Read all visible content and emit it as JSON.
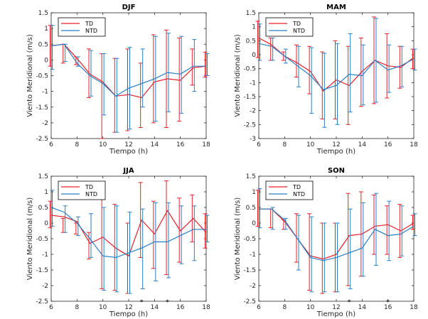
{
  "colors": {
    "td": "#e8202a",
    "ntd": "#2a7fc4",
    "axis": "#262626"
  },
  "chart_data": [
    {
      "type": "line",
      "title": "DJF",
      "xlabel": "Tiempo (h)",
      "ylabel": "Viento Meridional (m/s)",
      "xlim": [
        6,
        18
      ],
      "ylim": [
        -2.5,
        1.5
      ],
      "xticks": [
        "6",
        "8",
        "10",
        "12",
        "14",
        "16",
        "18"
      ],
      "yticks": [
        "1.5",
        "1",
        "0.5",
        "0",
        "-0.5",
        "-1",
        "-1.5",
        "-2",
        "-2.5"
      ],
      "x": [
        6,
        7,
        8,
        9,
        10,
        11,
        12,
        13,
        14,
        15,
        16,
        17,
        18
      ],
      "legend": [
        "TD",
        "NTD"
      ],
      "series": [
        {
          "name": "TD",
          "values": [
            0.45,
            0.5,
            0.05,
            -0.45,
            -0.7,
            -1.15,
            -1.1,
            -1.2,
            -0.7,
            -0.6,
            -0.65,
            -0.25,
            -0.2
          ],
          "err_low": [
            -0.2,
            -0.1,
            -0.15,
            -1.2,
            -2.5,
            -2.3,
            -2.25,
            -2.15,
            -2.0,
            -2.15,
            -1.95,
            -0.8,
            -0.55
          ],
          "err_high": [
            1.1,
            0.5,
            0.1,
            0.35,
            0.2,
            0.05,
            0.35,
            -0.1,
            0.8,
            0.95,
            0.7,
            0.35,
            0.25
          ]
        },
        {
          "name": "NTD",
          "values": [
            0.45,
            0.5,
            -0.1,
            -0.5,
            -0.75,
            -1.15,
            -0.9,
            -0.75,
            -0.6,
            -0.4,
            -0.45,
            -0.2,
            -0.2
          ],
          "err_low": [
            -0.3,
            -0.05,
            -0.2,
            -1.15,
            -1.75,
            -2.3,
            -2.2,
            -1.5,
            -1.95,
            -1.65,
            -1.7,
            -1.0,
            -0.5
          ],
          "err_high": [
            1.1,
            0.5,
            0.1,
            0.3,
            0.2,
            0.05,
            0.4,
            0.35,
            0.75,
            0.85,
            0.75,
            0.65,
            0.2
          ]
        }
      ],
      "markers": []
    },
    {
      "type": "line",
      "title": "MAM",
      "xlabel": "Tiempo (h)",
      "ylabel": "Viento Meridional (m/s)",
      "xlim": [
        6,
        18
      ],
      "ylim": [
        -3,
        1.5
      ],
      "xticks": [
        "6",
        "8",
        "10",
        "12",
        "14",
        "16",
        "18"
      ],
      "yticks": [
        "1.5",
        "1",
        "0.5",
        "0",
        "-0.5",
        "-1",
        "-1.5",
        "-2",
        "-2.5",
        "-3"
      ],
      "x": [
        6,
        7,
        8,
        9,
        10,
        11,
        12,
        13,
        14,
        15,
        16,
        17,
        18
      ],
      "legend": [
        "TD",
        "NTD"
      ],
      "series": [
        {
          "name": "TD",
          "values": [
            0.6,
            0.35,
            -0.05,
            -0.3,
            -0.6,
            -1.3,
            -0.9,
            -1.1,
            -0.6,
            -0.2,
            -0.4,
            -0.45,
            -0.1
          ],
          "err_low": [
            -0.1,
            -0.2,
            -0.2,
            -0.8,
            -1.4,
            -2.3,
            -2.3,
            -2.5,
            -1.85,
            -1.75,
            -1.55,
            -1.2,
            -0.5
          ],
          "err_high": [
            1.2,
            0.6,
            0.1,
            0.35,
            0.3,
            0.1,
            0.5,
            0.3,
            0.6,
            1.35,
            0.75,
            0.3,
            0.2
          ]
        },
        {
          "name": "NTD",
          "values": [
            0.4,
            0.3,
            -0.05,
            -0.4,
            -0.75,
            -1.25,
            -1.1,
            -0.7,
            -0.75,
            -0.2,
            -0.55,
            -0.4,
            -0.15
          ],
          "err_low": [
            -0.2,
            -0.2,
            -0.3,
            -1.15,
            -2.1,
            -2.6,
            -2.5,
            -2.05,
            -1.8,
            -1.7,
            -1.35,
            -1.15,
            -0.55
          ],
          "err_high": [
            1.1,
            0.6,
            0.2,
            0.3,
            0.25,
            0.05,
            0.4,
            0.75,
            0.35,
            1.3,
            0.35,
            0.3,
            0.2
          ]
        }
      ],
      "markers": []
    },
    {
      "type": "line",
      "title": "JJA",
      "xlabel": "Tiempo (h)",
      "ylabel": "Viento Meridional (m/s)",
      "xlim": [
        6,
        18
      ],
      "ylim": [
        -2.5,
        1.5
      ],
      "xticks": [
        "6",
        "8",
        "10",
        "12",
        "14",
        "16",
        "18"
      ],
      "yticks": [
        "1.5",
        "1",
        "0.5",
        "0",
        "-0.5",
        "-1",
        "-1.5",
        "-2",
        "-2.5"
      ],
      "x": [
        6,
        7,
        8,
        9,
        10,
        11,
        12,
        13,
        14,
        15,
        16,
        17,
        18
      ],
      "legend": [
        "TD",
        "NTD"
      ],
      "series": [
        {
          "name": "TD",
          "values": [
            0.25,
            0.2,
            0.05,
            -0.65,
            -0.45,
            -0.8,
            -1.05,
            0.1,
            -0.35,
            0.4,
            -0.25,
            0.15,
            -0.3
          ],
          "err_low": [
            -0.15,
            -0.3,
            -0.35,
            -1.15,
            -2.1,
            -2.15,
            -2.25,
            -1.1,
            -1.45,
            -1.65,
            -1.25,
            -0.6,
            -0.8
          ],
          "err_high": [
            0.7,
            0.15,
            0.0,
            -0.3,
            1.0,
            0.6,
            0.0,
            1.3,
            0.7,
            1.35,
            0.8,
            0.9,
            0.3
          ]
        },
        {
          "name": "NTD",
          "values": [
            0.5,
            0.35,
            0.0,
            -0.5,
            -1.05,
            -1.1,
            -0.95,
            -0.8,
            -0.6,
            -0.6,
            -0.4,
            -0.2,
            -0.2
          ],
          "err_low": [
            -0.1,
            -0.3,
            -0.4,
            -1.1,
            -2.15,
            -2.2,
            -2.25,
            -2.1,
            -1.85,
            -1.75,
            -1.3,
            -1.2,
            -0.6
          ],
          "err_high": [
            1.05,
            0.55,
            0.2,
            0.3,
            0.5,
            0.55,
            0.35,
            0.45,
            0.65,
            0.65,
            0.55,
            0.55,
            0.25
          ]
        }
      ],
      "markers": [
        13,
        15
      ]
    },
    {
      "type": "line",
      "title": "SON",
      "xlabel": "Tiempo (h)",
      "ylabel": "Viento Meridional (m/s)",
      "xlim": [
        6,
        18
      ],
      "ylim": [
        -2.5,
        1.5
      ],
      "xticks": [
        "6",
        "8",
        "10",
        "12",
        "14",
        "16",
        "18"
      ],
      "yticks": [
        "1.5",
        "1",
        "0.5",
        "0",
        "-0.5",
        "-1",
        "-1.5",
        "-2",
        "-2.5"
      ],
      "x": [
        6,
        7,
        8,
        9,
        10,
        11,
        12,
        13,
        14,
        15,
        16,
        17,
        18
      ],
      "legend": [
        "TD",
        "NTD"
      ],
      "series": [
        {
          "name": "TD",
          "values": [
            0.45,
            0.45,
            0.05,
            -0.5,
            -1.05,
            -1.15,
            -1.0,
            -0.4,
            -0.35,
            -0.1,
            -0.05,
            -0.25,
            0.0
          ],
          "err_low": [
            -0.1,
            -0.15,
            -0.2,
            -1.25,
            -2.15,
            -2.25,
            -2.2,
            -2.0,
            -1.7,
            -1.0,
            -1.0,
            -1.1,
            -0.2
          ],
          "err_high": [
            1.05,
            0.45,
            0.1,
            0.3,
            0.3,
            0.0,
            0.0,
            0.95,
            1.0,
            0.9,
            0.55,
            0.6,
            0.25
          ]
        },
        {
          "name": "NTD",
          "values": [
            0.45,
            0.45,
            0.1,
            -0.5,
            -1.1,
            -1.2,
            -1.1,
            -0.95,
            -0.8,
            -0.2,
            -0.4,
            -0.35,
            -0.1
          ],
          "err_low": [
            -0.15,
            -0.2,
            -0.2,
            -1.5,
            -2.2,
            -2.2,
            -2.2,
            -2.1,
            -1.7,
            -1.35,
            -1.2,
            -1.05,
            -0.4
          ],
          "err_high": [
            1.1,
            0.5,
            0.15,
            0.25,
            0.2,
            0.0,
            0.0,
            0.45,
            0.65,
            0.95,
            0.7,
            0.55,
            0.3
          ]
        }
      ],
      "markers": [
        13,
        16
      ]
    }
  ]
}
